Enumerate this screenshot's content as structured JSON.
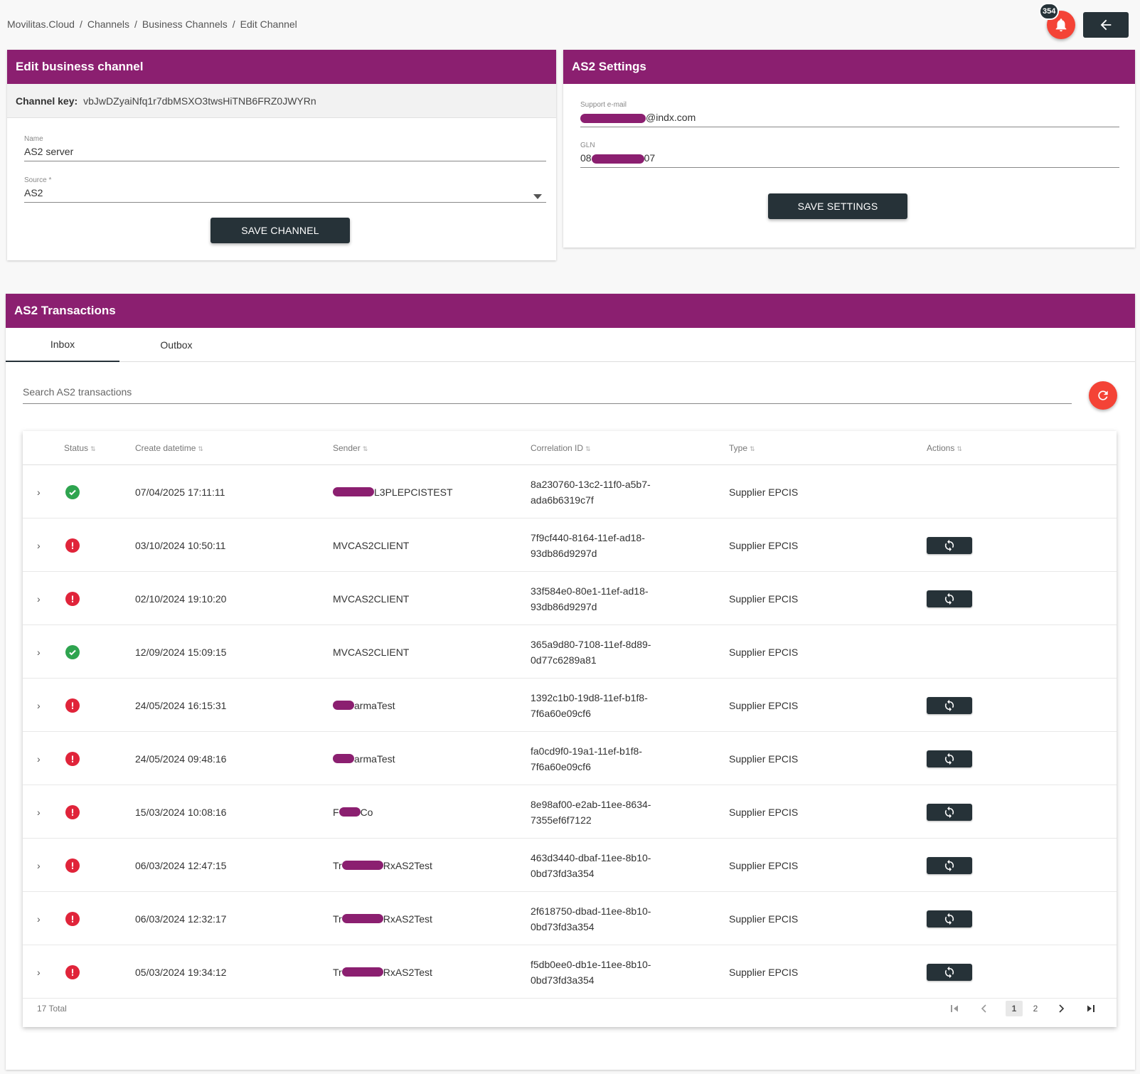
{
  "breadcrumb": [
    "Movilitas.Cloud",
    "Channels",
    "Business Channels",
    "Edit Channel"
  ],
  "notifications": {
    "count": "354"
  },
  "edit_channel": {
    "title": "Edit business channel",
    "key_label": "Channel key:",
    "key_value": "vbJwDZyaiNfq1r7dbMSXO3twsHiTNB6FRZ0JWYRn",
    "name_label": "Name",
    "name_value": "AS2 server",
    "source_label": "Source *",
    "source_value": "AS2",
    "save_label": "SAVE CHANNEL"
  },
  "as2_settings": {
    "title": "AS2 Settings",
    "email_label": "Support e-mail",
    "email_value": "@indx.com",
    "gln_label": "GLN",
    "gln_prefix": "08",
    "gln_suffix": "07",
    "save_label": "SAVE SETTINGS"
  },
  "transactions": {
    "title": "AS2 Transactions",
    "tabs": [
      "Inbox",
      "Outbox"
    ],
    "search_placeholder": "Search AS2 transactions",
    "columns": [
      "Status",
      "Create datetime",
      "Sender",
      "Correlation ID",
      "Type",
      "Actions"
    ],
    "rows": [
      {
        "status": "success",
        "datetime": "07/04/2025 17:11:11",
        "sender_prefix": "",
        "sender_suffix": "L3PLEPCISTEST",
        "redacted": true,
        "correlation": [
          "8a230760-13c2-11f0-a5b7-",
          "ada6b6319c7f"
        ],
        "type": "Supplier EPCIS",
        "action": false
      },
      {
        "status": "error",
        "datetime": "03/10/2024 10:50:11",
        "sender_prefix": "MVCAS2CLIENT",
        "sender_suffix": "",
        "redacted": false,
        "correlation": [
          "7f9cf440-8164-11ef-ad18-",
          "93db86d9297d"
        ],
        "type": "Supplier EPCIS",
        "action": true
      },
      {
        "status": "error",
        "datetime": "02/10/2024 19:10:20",
        "sender_prefix": "MVCAS2CLIENT",
        "sender_suffix": "",
        "redacted": false,
        "correlation": [
          "33f584e0-80e1-11ef-ad18-",
          "93db86d9297d"
        ],
        "type": "Supplier EPCIS",
        "action": true
      },
      {
        "status": "success",
        "datetime": "12/09/2024 15:09:15",
        "sender_prefix": "MVCAS2CLIENT",
        "sender_suffix": "",
        "redacted": false,
        "correlation": [
          "365a9d80-7108-11ef-8d89-",
          "0d77c6289a81"
        ],
        "type": "Supplier EPCIS",
        "action": false
      },
      {
        "status": "error",
        "datetime": "24/05/2024 16:15:31",
        "sender_prefix": "",
        "sender_suffix": "armaTest",
        "redacted": true,
        "correlation": [
          "1392c1b0-19d8-11ef-b1f8-",
          "7f6a60e09cf6"
        ],
        "type": "Supplier EPCIS",
        "action": true
      },
      {
        "status": "error",
        "datetime": "24/05/2024 09:48:16",
        "sender_prefix": "",
        "sender_suffix": "armaTest",
        "redacted": true,
        "correlation": [
          "fa0cd9f0-19a1-11ef-b1f8-",
          "7f6a60e09cf6"
        ],
        "type": "Supplier EPCIS",
        "action": true
      },
      {
        "status": "error",
        "datetime": "15/03/2024 10:08:16",
        "sender_prefix": "F",
        "sender_suffix": "Co",
        "redacted": true,
        "correlation": [
          "8e98af00-e2ab-11ee-8634-",
          "7355ef6f7122"
        ],
        "type": "Supplier EPCIS",
        "action": true
      },
      {
        "status": "error",
        "datetime": "06/03/2024 12:47:15",
        "sender_prefix": "Tr",
        "sender_suffix": "RxAS2Test",
        "redacted": true,
        "correlation": [
          "463d3440-dbaf-11ee-8b10-",
          "0bd73fd3a354"
        ],
        "type": "Supplier EPCIS",
        "action": true
      },
      {
        "status": "error",
        "datetime": "06/03/2024 12:32:17",
        "sender_prefix": "Tr",
        "sender_suffix": "RxAS2Test",
        "redacted": true,
        "correlation": [
          "2f618750-dbad-11ee-8b10-",
          "0bd73fd3a354"
        ],
        "type": "Supplier EPCIS",
        "action": true
      },
      {
        "status": "error",
        "datetime": "05/03/2024 19:34:12",
        "sender_prefix": "Tr",
        "sender_suffix": "RxAS2Test",
        "redacted": true,
        "correlation": [
          "f5db0ee0-db1e-11ee-8b10-",
          "0bd73fd3a354"
        ],
        "type": "Supplier EPCIS",
        "action": true
      }
    ],
    "total_label": "17 Total",
    "pages": [
      "1",
      "2"
    ],
    "current_page": "1"
  },
  "colors": {
    "header": "#8b1f70",
    "dark": "#263238",
    "accent": "#f44336",
    "success": "#2ea44f",
    "error": "#e0243a"
  },
  "icons": [
    "bell-icon",
    "arrow-left-icon",
    "refresh-icon",
    "check-icon",
    "exclamation-icon",
    "sync-icon",
    "chevron-right-icon",
    "chevron-down-icon",
    "first-page-icon",
    "prev-page-icon",
    "next-page-icon",
    "last-page-icon"
  ]
}
